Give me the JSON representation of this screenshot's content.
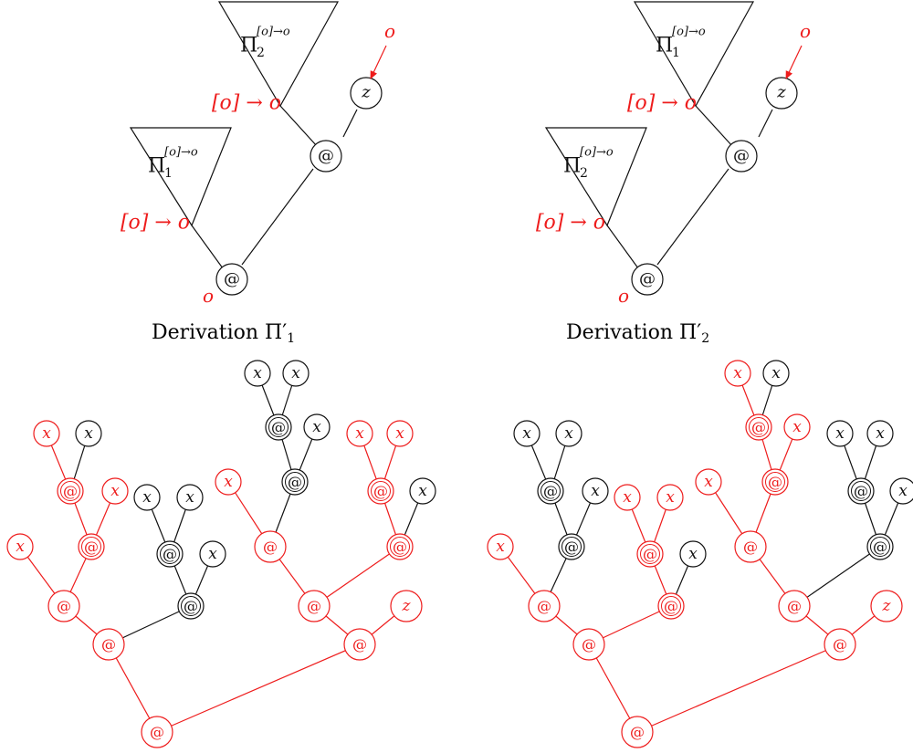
{
  "colors": {
    "red": "#ee1c1c",
    "black": "#111111"
  },
  "derivations": [
    {
      "caption": {
        "word": "Derivation",
        "symbol": "Π′",
        "index": "1"
      },
      "upper_triangle": {
        "pi": "Π",
        "index": "2",
        "superscript": "[o]→o",
        "root_type": "[o] → o"
      },
      "lower_triangle": {
        "pi": "Π",
        "index": "1",
        "superscript": "[o]→o",
        "root_type": "[o] → o"
      },
      "top_node": "@",
      "z_node": "z",
      "z_type": "o",
      "bottom_node": "@",
      "bottom_type": "o"
    },
    {
      "caption": {
        "word": "Derivation",
        "symbol": "Π′",
        "index": "2"
      },
      "upper_triangle": {
        "pi": "Π",
        "index": "1",
        "superscript": "[o]→o",
        "root_type": "[o] → o"
      },
      "lower_triangle": {
        "pi": "Π",
        "index": "2",
        "superscript": "[o]→o",
        "root_type": "[o] → o"
      },
      "top_node": "@",
      "z_node": "z",
      "z_type": "o",
      "bottom_node": "@",
      "bottom_type": "o"
    }
  ],
  "trees": [
    {
      "nodes": [
        {
          "id": "root",
          "label": "@",
          "color": "red"
        },
        {
          "id": "L",
          "label": "@",
          "color": "red"
        },
        {
          "id": "R",
          "label": "@",
          "color": "red"
        },
        {
          "id": "LL",
          "label": "@",
          "color": "red"
        },
        {
          "id": "LLx",
          "label": "x",
          "color": "red"
        },
        {
          "id": "LLa",
          "label": "@",
          "color": "red"
        },
        {
          "id": "LLax",
          "label": "x",
          "color": "red"
        },
        {
          "id": "LLaa",
          "label": "@",
          "color": "red"
        },
        {
          "id": "LLaax1",
          "label": "x",
          "color": "red"
        },
        {
          "id": "LLaax2",
          "label": "x",
          "color": "black"
        },
        {
          "id": "LR",
          "label": "@",
          "color": "black"
        },
        {
          "id": "LRx",
          "label": "x",
          "color": "black"
        },
        {
          "id": "LRa",
          "label": "@",
          "color": "black"
        },
        {
          "id": "LRax1",
          "label": "x",
          "color": "black"
        },
        {
          "id": "LRax2",
          "label": "x",
          "color": "black"
        },
        {
          "id": "RL",
          "label": "@",
          "color": "red"
        },
        {
          "id": "Rz",
          "label": "z",
          "color": "red"
        },
        {
          "id": "RLa",
          "label": "@",
          "color": "red"
        },
        {
          "id": "RLax",
          "label": "x",
          "color": "red"
        },
        {
          "id": "RLab",
          "label": "@",
          "color": "black"
        },
        {
          "id": "RLabx",
          "label": "x",
          "color": "black"
        },
        {
          "id": "RLabb",
          "label": "@",
          "color": "black"
        },
        {
          "id": "RLabbx1",
          "label": "x",
          "color": "black"
        },
        {
          "id": "RLabbx2",
          "label": "x",
          "color": "black"
        },
        {
          "id": "RLc",
          "label": "@",
          "color": "red"
        },
        {
          "id": "RLcx",
          "label": "x",
          "color": "black"
        },
        {
          "id": "RLcd",
          "label": "@",
          "color": "red"
        },
        {
          "id": "RLcdx1",
          "label": "x",
          "color": "red"
        },
        {
          "id": "RLcdx2",
          "label": "x",
          "color": "red"
        }
      ],
      "edges": [
        [
          "root",
          "L",
          "red"
        ],
        [
          "root",
          "R",
          "red"
        ],
        [
          "L",
          "LL",
          "red"
        ],
        [
          "L",
          "LR",
          "black"
        ],
        [
          "LL",
          "LLx",
          "red"
        ],
        [
          "LL",
          "LLa",
          "red"
        ],
        [
          "LLa",
          "LLaa",
          "red"
        ],
        [
          "LLa",
          "LLax",
          "red"
        ],
        [
          "LLaa",
          "LLaax1",
          "red"
        ],
        [
          "LLaa",
          "LLaax2",
          "black"
        ],
        [
          "LR",
          "LRa",
          "black"
        ],
        [
          "LR",
          "LRx",
          "black"
        ],
        [
          "LRa",
          "LRax1",
          "black"
        ],
        [
          "LRa",
          "LRax2",
          "black"
        ],
        [
          "R",
          "RL",
          "red"
        ],
        [
          "R",
          "Rz",
          "red"
        ],
        [
          "RL",
          "RLa",
          "red"
        ],
        [
          "RL",
          "RLc",
          "red"
        ],
        [
          "RLa",
          "RLax",
          "red"
        ],
        [
          "RLa",
          "RLab",
          "black"
        ],
        [
          "RLab",
          "RLabb",
          "black"
        ],
        [
          "RLab",
          "RLabx",
          "black"
        ],
        [
          "RLabb",
          "RLabbx1",
          "black"
        ],
        [
          "RLabb",
          "RLabbx2",
          "black"
        ],
        [
          "RLc",
          "RLcd",
          "red"
        ],
        [
          "RLc",
          "RLcx",
          "black"
        ],
        [
          "RLcd",
          "RLcdx1",
          "red"
        ],
        [
          "RLcd",
          "RLcdx2",
          "red"
        ]
      ]
    },
    {
      "nodes": [
        {
          "id": "root",
          "label": "@",
          "color": "red"
        },
        {
          "id": "L",
          "label": "@",
          "color": "red"
        },
        {
          "id": "R",
          "label": "@",
          "color": "red"
        },
        {
          "id": "LL",
          "label": "@",
          "color": "red"
        },
        {
          "id": "LLx",
          "label": "x",
          "color": "red"
        },
        {
          "id": "LLa",
          "label": "@",
          "color": "black"
        },
        {
          "id": "LLax",
          "label": "x",
          "color": "black"
        },
        {
          "id": "LLaa",
          "label": "@",
          "color": "black"
        },
        {
          "id": "LLaax1",
          "label": "x",
          "color": "black"
        },
        {
          "id": "LLaax2",
          "label": "x",
          "color": "black"
        },
        {
          "id": "LR",
          "label": "@",
          "color": "red"
        },
        {
          "id": "LRx",
          "label": "x",
          "color": "black"
        },
        {
          "id": "LRa",
          "label": "@",
          "color": "red"
        },
        {
          "id": "LRax1",
          "label": "x",
          "color": "red"
        },
        {
          "id": "LRax2",
          "label": "x",
          "color": "red"
        },
        {
          "id": "RL",
          "label": "@",
          "color": "red"
        },
        {
          "id": "Rz",
          "label": "z",
          "color": "red"
        },
        {
          "id": "RLa",
          "label": "@",
          "color": "red"
        },
        {
          "id": "RLax",
          "label": "x",
          "color": "red"
        },
        {
          "id": "RLab",
          "label": "@",
          "color": "red"
        },
        {
          "id": "RLabx",
          "label": "x",
          "color": "red"
        },
        {
          "id": "RLabb",
          "label": "@",
          "color": "red"
        },
        {
          "id": "RLabbx1",
          "label": "x",
          "color": "red"
        },
        {
          "id": "RLabbx2",
          "label": "x",
          "color": "black"
        },
        {
          "id": "RLc",
          "label": "@",
          "color": "black"
        },
        {
          "id": "RLcx",
          "label": "x",
          "color": "black"
        },
        {
          "id": "RLcd",
          "label": "@",
          "color": "black"
        },
        {
          "id": "RLcdx1",
          "label": "x",
          "color": "black"
        },
        {
          "id": "RLcdx2",
          "label": "x",
          "color": "black"
        }
      ],
      "edges": [
        [
          "root",
          "L",
          "red"
        ],
        [
          "root",
          "R",
          "red"
        ],
        [
          "L",
          "LL",
          "red"
        ],
        [
          "L",
          "LR",
          "red"
        ],
        [
          "LL",
          "LLx",
          "red"
        ],
        [
          "LL",
          "LLa",
          "black"
        ],
        [
          "LLa",
          "LLaa",
          "black"
        ],
        [
          "LLa",
          "LLax",
          "black"
        ],
        [
          "LLaa",
          "LLaax1",
          "black"
        ],
        [
          "LLaa",
          "LLaax2",
          "black"
        ],
        [
          "LR",
          "LRa",
          "red"
        ],
        [
          "LR",
          "LRx",
          "black"
        ],
        [
          "LRa",
          "LRax1",
          "red"
        ],
        [
          "LRa",
          "LRax2",
          "red"
        ],
        [
          "R",
          "RL",
          "red"
        ],
        [
          "R",
          "Rz",
          "red"
        ],
        [
          "RL",
          "RLa",
          "red"
        ],
        [
          "RL",
          "RLc",
          "black"
        ],
        [
          "RLa",
          "RLax",
          "red"
        ],
        [
          "RLa",
          "RLab",
          "red"
        ],
        [
          "RLab",
          "RLabb",
          "red"
        ],
        [
          "RLab",
          "RLabx",
          "red"
        ],
        [
          "RLabb",
          "RLabbx1",
          "red"
        ],
        [
          "RLabb",
          "RLabbx2",
          "black"
        ],
        [
          "RLc",
          "RLcd",
          "black"
        ],
        [
          "RLc",
          "RLcx",
          "black"
        ],
        [
          "RLcd",
          "RLcdx1",
          "black"
        ],
        [
          "RLcd",
          "RLcdx2",
          "black"
        ]
      ]
    }
  ]
}
